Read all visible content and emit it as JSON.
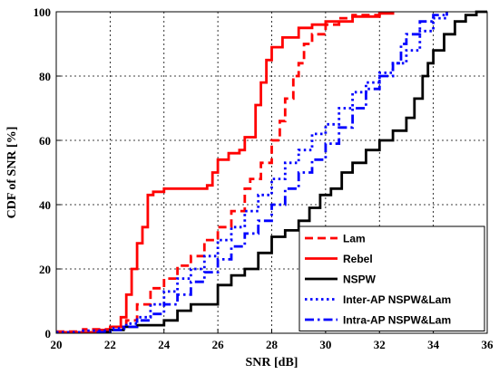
{
  "chart_data": {
    "type": "line",
    "xlabel": "SNR [dB]",
    "ylabel": "CDF of SNR [%]",
    "xlim": [
      20,
      36
    ],
    "ylim": [
      0,
      100
    ],
    "xticks": [
      20,
      22,
      24,
      26,
      28,
      30,
      32,
      34,
      36
    ],
    "yticks": [
      0,
      20,
      40,
      60,
      80,
      100
    ],
    "grid": true,
    "legend_position": "bottom-right",
    "series": [
      {
        "name": "Lam",
        "color": "#ff0000",
        "style": "dashed",
        "points": [
          [
            20.0,
            0.5
          ],
          [
            21.0,
            1.2
          ],
          [
            22.0,
            2.0
          ],
          [
            22.6,
            4.0
          ],
          [
            23.0,
            9.0
          ],
          [
            23.5,
            14.0
          ],
          [
            24.0,
            17.0
          ],
          [
            24.5,
            21.0
          ],
          [
            25.0,
            24.0
          ],
          [
            25.5,
            29.0
          ],
          [
            26.0,
            33.0
          ],
          [
            26.5,
            38.0
          ],
          [
            27.0,
            45.0
          ],
          [
            27.2,
            48.0
          ],
          [
            27.6,
            53.0
          ],
          [
            28.0,
            60.0
          ],
          [
            28.3,
            66.0
          ],
          [
            28.5,
            73.0
          ],
          [
            28.8,
            80.0
          ],
          [
            29.0,
            84.0
          ],
          [
            29.2,
            90.0
          ],
          [
            29.5,
            93.0
          ],
          [
            30.0,
            96.0
          ],
          [
            30.5,
            98.0
          ],
          [
            31.0,
            99.0
          ],
          [
            32.0,
            100.0
          ]
        ]
      },
      {
        "name": "Rebel",
        "color": "#ff0000",
        "style": "solid",
        "points": [
          [
            20.0,
            0.3
          ],
          [
            21.5,
            1.0
          ],
          [
            22.0,
            2.0
          ],
          [
            22.4,
            5.0
          ],
          [
            22.6,
            12.0
          ],
          [
            22.8,
            20.0
          ],
          [
            23.0,
            28.0
          ],
          [
            23.2,
            33.0
          ],
          [
            23.4,
            43.0
          ],
          [
            23.6,
            44.0
          ],
          [
            24.0,
            45.0
          ],
          [
            25.0,
            45.0
          ],
          [
            25.6,
            46.0
          ],
          [
            25.8,
            50.0
          ],
          [
            26.0,
            54.0
          ],
          [
            26.4,
            56.0
          ],
          [
            26.8,
            57.0
          ],
          [
            27.0,
            61.0
          ],
          [
            27.4,
            71.0
          ],
          [
            27.6,
            78.0
          ],
          [
            27.8,
            85.0
          ],
          [
            28.0,
            89.0
          ],
          [
            28.4,
            92.0
          ],
          [
            29.0,
            95.0
          ],
          [
            29.5,
            96.0
          ],
          [
            30.0,
            97.0
          ],
          [
            31.0,
            98.5
          ],
          [
            32.0,
            99.5
          ],
          [
            32.5,
            100.0
          ]
        ]
      },
      {
        "name": "NSPW",
        "color": "#000000",
        "style": "solid",
        "points": [
          [
            21.5,
            0.3
          ],
          [
            22.0,
            1.0
          ],
          [
            22.5,
            2.0
          ],
          [
            23.0,
            2.5
          ],
          [
            24.0,
            4.0
          ],
          [
            24.5,
            7.0
          ],
          [
            25.0,
            9.0
          ],
          [
            26.0,
            15.0
          ],
          [
            26.5,
            18.0
          ],
          [
            27.0,
            20.0
          ],
          [
            27.5,
            25.0
          ],
          [
            28.0,
            30.0
          ],
          [
            28.5,
            32.0
          ],
          [
            29.0,
            35.0
          ],
          [
            29.4,
            39.0
          ],
          [
            29.8,
            43.0
          ],
          [
            30.2,
            45.0
          ],
          [
            30.6,
            50.0
          ],
          [
            31.0,
            53.0
          ],
          [
            31.5,
            57.0
          ],
          [
            32.0,
            60.0
          ],
          [
            32.5,
            63.0
          ],
          [
            33.0,
            67.0
          ],
          [
            33.3,
            73.0
          ],
          [
            33.6,
            80.0
          ],
          [
            33.8,
            84.0
          ],
          [
            34.0,
            88.0
          ],
          [
            34.4,
            93.0
          ],
          [
            34.8,
            97.0
          ],
          [
            35.2,
            99.0
          ],
          [
            35.6,
            100.0
          ],
          [
            36.0,
            100.0
          ]
        ]
      },
      {
        "name": "Inter-AP NSPW&Lam",
        "color": "#0000ff",
        "style": "dotted",
        "points": [
          [
            20.0,
            0.3
          ],
          [
            21.0,
            0.8
          ],
          [
            22.0,
            1.5
          ],
          [
            22.6,
            3.0
          ],
          [
            23.0,
            5.0
          ],
          [
            23.5,
            9.0
          ],
          [
            24.0,
            13.0
          ],
          [
            24.5,
            17.0
          ],
          [
            25.0,
            20.0
          ],
          [
            25.5,
            24.0
          ],
          [
            26.0,
            29.0
          ],
          [
            26.5,
            33.0
          ],
          [
            27.0,
            38.0
          ],
          [
            27.5,
            43.0
          ],
          [
            28.0,
            48.0
          ],
          [
            28.5,
            53.0
          ],
          [
            29.0,
            57.0
          ],
          [
            29.5,
            62.0
          ],
          [
            30.0,
            65.0
          ],
          [
            30.5,
            70.0
          ],
          [
            31.0,
            75.0
          ],
          [
            31.5,
            78.0
          ],
          [
            32.0,
            81.0
          ],
          [
            32.5,
            84.0
          ],
          [
            33.0,
            88.0
          ],
          [
            33.5,
            94.0
          ],
          [
            34.0,
            98.0
          ],
          [
            34.5,
            100.0
          ]
        ]
      },
      {
        "name": "Intra-AP NSPW&Lam",
        "color": "#0000ff",
        "style": "dashdot",
        "points": [
          [
            21.5,
            0.3
          ],
          [
            22.0,
            1.0
          ],
          [
            22.5,
            2.0
          ],
          [
            23.0,
            4.0
          ],
          [
            23.5,
            6.0
          ],
          [
            24.0,
            9.0
          ],
          [
            24.5,
            12.0
          ],
          [
            25.0,
            16.0
          ],
          [
            25.5,
            19.0
          ],
          [
            26.0,
            23.0
          ],
          [
            26.5,
            27.0
          ],
          [
            27.0,
            31.0
          ],
          [
            27.5,
            35.0
          ],
          [
            28.0,
            40.0
          ],
          [
            28.5,
            45.0
          ],
          [
            29.0,
            50.0
          ],
          [
            29.5,
            54.0
          ],
          [
            30.0,
            59.0
          ],
          [
            30.5,
            64.0
          ],
          [
            31.0,
            70.0
          ],
          [
            31.5,
            76.0
          ],
          [
            32.0,
            80.0
          ],
          [
            32.5,
            84.0
          ],
          [
            32.8,
            90.0
          ],
          [
            33.0,
            93.0
          ],
          [
            33.5,
            97.0
          ],
          [
            34.0,
            99.0
          ],
          [
            34.5,
            100.0
          ]
        ]
      }
    ]
  }
}
